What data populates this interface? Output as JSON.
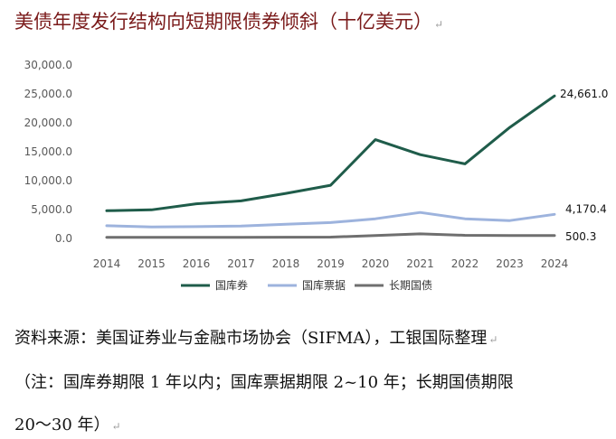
{
  "chart_data": {
    "type": "line",
    "title": "美债年度发行结构向短期限债券倾斜（十亿美元）",
    "x": [
      "2014",
      "2015",
      "2016",
      "2017",
      "2018",
      "2019",
      "2020",
      "2021",
      "2022",
      "2023",
      "2024"
    ],
    "ylim": [
      0,
      30000
    ],
    "yticks": [
      "30,000.0",
      "25,000.0",
      "20,000.0",
      "15,000.0",
      "10,000.0",
      "5,000.0",
      "0.0"
    ],
    "grid": false,
    "legend_position": "bottom",
    "series": [
      {
        "name": "国库券",
        "color": "#1f5c4a",
        "values": [
          4800,
          4950,
          6000,
          6500,
          7800,
          9200,
          17100,
          14500,
          12900,
          19200,
          24661.0
        ],
        "end_label": "24,661.0"
      },
      {
        "name": "国库票据",
        "color": "#9db3dd",
        "values": [
          2200,
          2000,
          2050,
          2150,
          2450,
          2750,
          3400,
          4500,
          3400,
          3100,
          4170.4
        ],
        "end_label": "4,170.4"
      },
      {
        "name": "长期国债",
        "color": "#6f6f6f",
        "values": [
          200,
          200,
          200,
          210,
          220,
          230,
          500,
          800,
          550,
          520,
          500.3
        ],
        "end_label": "500.3"
      }
    ]
  },
  "text": {
    "source_line": "资料来源：美国证券业与金融市场协会（SIFMA），工银国际整理",
    "note_line1": "（注：国库券期限 1 年以内；国库票据期限 2~10 年；长期国债期限",
    "note_line2": "20～30 年）"
  }
}
